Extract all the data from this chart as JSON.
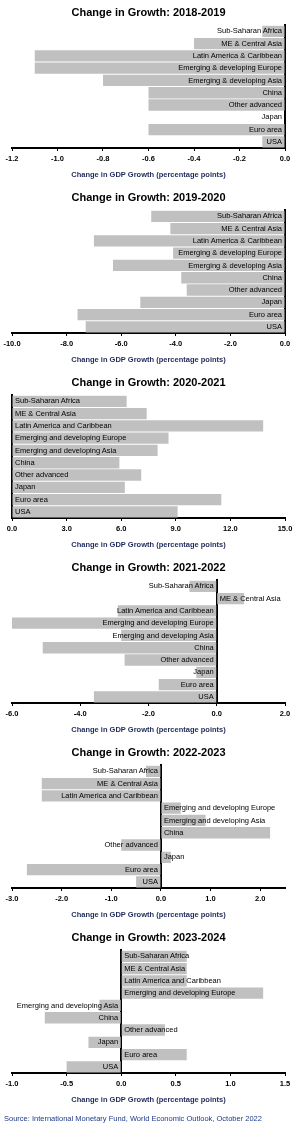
{
  "chart_data": [
    {
      "type": "bar",
      "orientation": "horizontal",
      "title": "Change in Growth: 2018-2019",
      "xlabel": "Change in GDP Growth (percentage points)",
      "categories": [
        "Sub-Saharan Africa",
        "ME & Central Asia",
        "Latin America & Caribbean",
        "Emerging & developing Europe",
        "Emerging & developing Asia",
        "China",
        "Other advanced",
        "Japan",
        "Euro area",
        "USA"
      ],
      "values": [
        -0.1,
        -0.4,
        -1.1,
        -1.1,
        -0.8,
        -0.6,
        -0.6,
        0,
        -0.6,
        -0.1
      ],
      "color": "#c0c0c0",
      "xlim": [
        -1.2,
        0
      ],
      "xticks": [
        {
          "value": -1.2,
          "label": "-1.2"
        },
        {
          "value": -1,
          "label": "-1.0"
        },
        {
          "value": -0.8,
          "label": "-0.8"
        },
        {
          "value": -0.6,
          "label": "-0.6"
        },
        {
          "value": -0.4,
          "label": "-0.4"
        },
        {
          "value": -0.2,
          "label": "-0.2"
        },
        {
          "value": 0,
          "label": "0.0"
        }
      ]
    },
    {
      "type": "bar",
      "orientation": "horizontal",
      "title": "Change in Growth: 2019-2020",
      "xlabel": "Change in GDP Growth (percentage points)",
      "categories": [
        "Sub-Saharan Africa",
        "ME & Central Asia",
        "Latin America & Caribbean",
        "Emerging & developing Europe",
        "Emerging & developing Asia",
        "China",
        "Other advanced",
        "Japan",
        "Euro area",
        "USA"
      ],
      "values": [
        -4.9,
        -4.2,
        -7.0,
        -4.1,
        -6.3,
        -3.8,
        -3.6,
        -5.3,
        -7.6,
        -7.3
      ],
      "color": "#c0c0c0",
      "xlim": [
        -10,
        0
      ],
      "xticks": [
        {
          "value": -10,
          "label": "-10.0"
        },
        {
          "value": -8,
          "label": "-8.0"
        },
        {
          "value": -6,
          "label": "-6.0"
        },
        {
          "value": -4,
          "label": "-4.0"
        },
        {
          "value": -2,
          "label": "-2.0"
        },
        {
          "value": 0,
          "label": "0.0"
        }
      ]
    },
    {
      "type": "bar",
      "orientation": "horizontal",
      "title": "Change in Growth: 2020-2021",
      "xlabel": "Change in GDP Growth (percentage points)",
      "categories": [
        "Sub-Saharan Africa",
        "ME & Central Asia",
        "Latin America and Caribbean",
        "Emerging and developing Europe",
        "Emerging and developing Asia",
        "China",
        "Other advanced",
        "Japan",
        "Euro area",
        "USA"
      ],
      "values": [
        6.3,
        7.4,
        13.8,
        8.6,
        8.0,
        5.9,
        7.1,
        6.2,
        11.5,
        9.1
      ],
      "color": "#c0c0c0",
      "xlim": [
        0,
        15
      ],
      "xticks": [
        {
          "value": 0,
          "label": "0.0"
        },
        {
          "value": 3,
          "label": "3.0"
        },
        {
          "value": 6,
          "label": "6.0"
        },
        {
          "value": 9,
          "label": "9.0"
        },
        {
          "value": 12,
          "label": "12.0"
        },
        {
          "value": 15,
          "label": "15.0"
        }
      ]
    },
    {
      "type": "bar",
      "orientation": "horizontal",
      "title": "Change in Growth: 2021-2022",
      "xlabel": "Change in GDP Growth (percentage points)",
      "categories": [
        "Sub-Saharan Africa",
        "ME & Central Asia",
        "Latin America and Caribbean",
        "Emerging and developing Europe",
        "Emerging and developing Asia",
        "China",
        "Other advanced",
        "Japan",
        "Euro area",
        "USA"
      ],
      "values": [
        -0.8,
        0.8,
        -2.9,
        -6.0,
        -2.8,
        -5.1,
        -2.7,
        -0.6,
        -1.7,
        -3.6
      ],
      "color": "#c0c0c0",
      "xlim": [
        -6,
        2
      ],
      "xticks": [
        {
          "value": -6,
          "label": "-6.0"
        },
        {
          "value": -4,
          "label": "-4.0"
        },
        {
          "value": -2,
          "label": "-2.0"
        },
        {
          "value": 0,
          "label": "0.0"
        },
        {
          "value": 2,
          "label": "2.0"
        }
      ]
    },
    {
      "type": "bar",
      "orientation": "horizontal",
      "title": "Change in Growth: 2022-2023",
      "xlabel": "Change in GDP Growth (percentage points)",
      "categories": [
        "Sub-Saharan Africa",
        "ME & Central Asia",
        "Latin America and Caribbean",
        "Emerging and developing Europe",
        "Emerging and developing Asia",
        "China",
        "Other advanced",
        "Japan",
        "Euro area",
        "USA"
      ],
      "values": [
        -0.3,
        -2.4,
        -2.4,
        0.4,
        0.9,
        2.2,
        -0.8,
        0.2,
        -2.7,
        -0.5
      ],
      "color": "#c0c0c0",
      "xlim": [
        -3,
        2.5
      ],
      "xticks": [
        {
          "value": -3,
          "label": "-3.0"
        },
        {
          "value": -2,
          "label": "-2.0"
        },
        {
          "value": -1,
          "label": "-1.0"
        },
        {
          "value": 0,
          "label": "0.0"
        },
        {
          "value": 1,
          "label": "1.0"
        },
        {
          "value": 2,
          "label": "2.0"
        }
      ]
    },
    {
      "type": "bar",
      "orientation": "horizontal",
      "title": "Change in Growth: 2023-2024",
      "xlabel": "Change in GDP Growth (percentage points)",
      "categories": [
        "Sub-Saharan Africa",
        "ME & Central Asia",
        "Latin America and Caribbean",
        "Emerging and developing Europe",
        "Emerging and developing Asia",
        "China",
        "Other advanced",
        "Japan",
        "Euro area",
        "USA"
      ],
      "values": [
        0.6,
        0.6,
        0.6,
        1.3,
        -0.2,
        -0.7,
        0.4,
        -0.3,
        0.6,
        -0.5
      ],
      "color": "#c0c0c0",
      "xlim": [
        -1,
        1.5
      ],
      "xticks": [
        {
          "value": -1,
          "label": "-1.0"
        },
        {
          "value": -0.5,
          "label": "-0.5"
        },
        {
          "value": 0,
          "label": "0.0"
        },
        {
          "value": 0.5,
          "label": "0.5"
        },
        {
          "value": 1,
          "label": "1.0"
        },
        {
          "value": 1.5,
          "label": "1.5"
        }
      ],
      "annotations": [
        "Source: International Monetary Fund, World Economic Outlook, October 2022"
      ]
    }
  ]
}
